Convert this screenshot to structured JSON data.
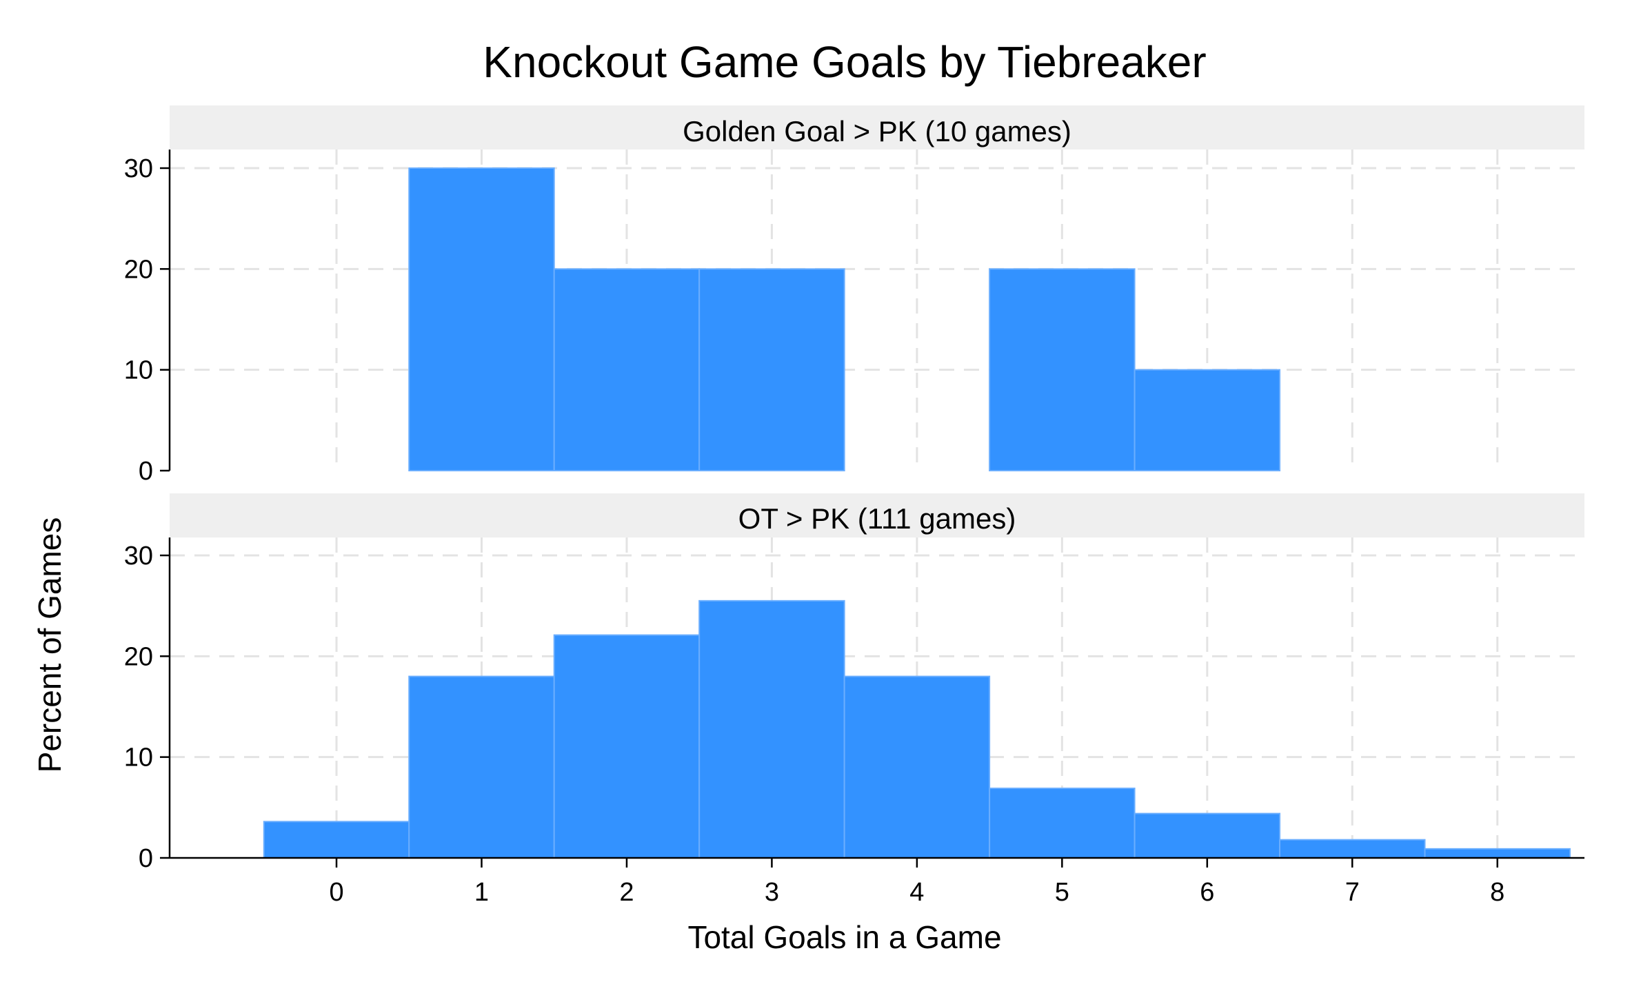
{
  "chart_data": {
    "type": "bar",
    "title": "Knockout Game Goals by Tiebreaker",
    "xlabel": "Total Goals in a Game",
    "ylabel": "Percent of Games",
    "x_ticks": [
      "0",
      "1",
      "2",
      "3",
      "4",
      "5",
      "6",
      "7",
      "8"
    ],
    "y_ticks": [
      "0",
      "10",
      "20",
      "30"
    ],
    "xlim": [
      -1.15,
      8.6
    ],
    "ylim": [
      0,
      30
    ],
    "grid": true,
    "bar_color": "#3392ff",
    "panels": [
      {
        "label": "Golden Goal > PK (10 games)",
        "x": [
          0,
          1,
          2,
          3,
          4,
          5,
          6,
          7,
          8
        ],
        "values": [
          0,
          30,
          20,
          20,
          0,
          20,
          10,
          0,
          0
        ]
      },
      {
        "label": "OT > PK (111 games)",
        "x": [
          0,
          1,
          2,
          3,
          4,
          5,
          6,
          7,
          8
        ],
        "values": [
          3.6,
          18.0,
          22.1,
          25.5,
          18.0,
          6.9,
          4.4,
          1.8,
          0.9
        ]
      }
    ]
  }
}
